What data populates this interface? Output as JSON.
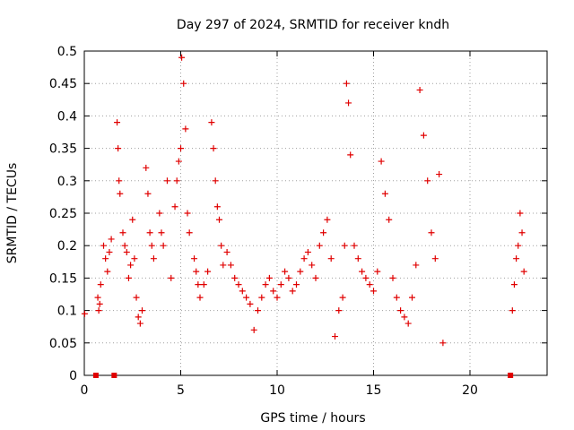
{
  "chart_data": {
    "type": "scatter",
    "title": "Day 297 of 2024, SRMTID for receiver kndh",
    "xlabel": "GPS time / hours",
    "ylabel": "SRMTID / TECUs",
    "xlim": [
      0,
      24
    ],
    "ylim": [
      0,
      0.5
    ],
    "x_ticks": [
      0,
      5,
      10,
      15,
      20
    ],
    "x_tick_labels": [
      "0",
      "5",
      "10",
      "15",
      "20"
    ],
    "y_ticks": [
      0,
      0.05,
      0.1,
      0.15,
      0.2,
      0.25,
      0.3,
      0.35,
      0.4,
      0.45,
      0.5
    ],
    "y_tick_labels": [
      "0",
      "0.05",
      "0.1",
      "0.15",
      "0.2",
      "0.25",
      "0.3",
      "0.35",
      "0.4",
      "0.45",
      "0.5"
    ],
    "grid": true,
    "marker": "+",
    "color": "#e00000",
    "series": [
      {
        "name": "SRMTID",
        "x": [
          0.02,
          0.6,
          1.55,
          22.1,
          0.7,
          0.75,
          0.8,
          0.85,
          1.0,
          1.1,
          1.2,
          1.3,
          1.4,
          1.7,
          1.75,
          1.8,
          1.85,
          2.0,
          2.1,
          2.2,
          2.3,
          2.4,
          2.5,
          2.6,
          2.7,
          2.8,
          2.9,
          3.0,
          3.2,
          3.3,
          3.4,
          3.5,
          3.6,
          3.9,
          4.0,
          4.1,
          4.3,
          4.5,
          4.7,
          4.8,
          4.9,
          5.0,
          5.05,
          5.15,
          5.25,
          5.35,
          5.45,
          5.7,
          5.8,
          5.9,
          6.0,
          6.2,
          6.4,
          6.6,
          6.7,
          6.8,
          6.9,
          7.0,
          7.1,
          7.2,
          7.4,
          7.6,
          7.8,
          8.0,
          8.2,
          8.4,
          8.6,
          8.8,
          9.0,
          9.2,
          9.4,
          9.6,
          9.8,
          10.0,
          10.2,
          10.4,
          10.6,
          10.8,
          11.0,
          11.2,
          11.4,
          11.6,
          11.8,
          12.0,
          12.2,
          12.4,
          12.6,
          12.8,
          13.0,
          13.2,
          13.4,
          13.5,
          13.6,
          13.7,
          13.8,
          14.0,
          14.2,
          14.4,
          14.6,
          14.8,
          15.0,
          15.2,
          15.4,
          15.6,
          15.8,
          16.0,
          16.2,
          16.4,
          16.6,
          16.8,
          17.0,
          17.2,
          17.4,
          17.6,
          17.8,
          18.0,
          18.2,
          18.4,
          18.6,
          22.2,
          22.3,
          22.4,
          22.5,
          22.6,
          22.7,
          22.8
        ],
        "y": [
          0.095,
          0.0,
          0.0,
          0.0,
          0.12,
          0.1,
          0.11,
          0.14,
          0.2,
          0.18,
          0.16,
          0.19,
          0.21,
          0.39,
          0.35,
          0.3,
          0.28,
          0.22,
          0.2,
          0.19,
          0.15,
          0.17,
          0.24,
          0.18,
          0.12,
          0.09,
          0.08,
          0.1,
          0.32,
          0.28,
          0.22,
          0.2,
          0.18,
          0.25,
          0.22,
          0.2,
          0.3,
          0.15,
          0.26,
          0.3,
          0.33,
          0.35,
          0.49,
          0.45,
          0.38,
          0.25,
          0.22,
          0.18,
          0.16,
          0.14,
          0.12,
          0.14,
          0.16,
          0.39,
          0.35,
          0.3,
          0.26,
          0.24,
          0.2,
          0.17,
          0.19,
          0.17,
          0.15,
          0.14,
          0.13,
          0.12,
          0.11,
          0.07,
          0.1,
          0.12,
          0.14,
          0.15,
          0.13,
          0.12,
          0.14,
          0.16,
          0.15,
          0.13,
          0.14,
          0.16,
          0.18,
          0.19,
          0.17,
          0.15,
          0.2,
          0.22,
          0.24,
          0.18,
          0.06,
          0.1,
          0.12,
          0.2,
          0.45,
          0.42,
          0.34,
          0.2,
          0.18,
          0.16,
          0.15,
          0.14,
          0.13,
          0.16,
          0.33,
          0.28,
          0.24,
          0.15,
          0.12,
          0.1,
          0.09,
          0.08,
          0.12,
          0.17,
          0.44,
          0.37,
          0.3,
          0.22,
          0.18,
          0.31,
          0.05,
          0.1,
          0.14,
          0.18,
          0.2,
          0.25,
          0.22,
          0.16
        ]
      }
    ]
  }
}
